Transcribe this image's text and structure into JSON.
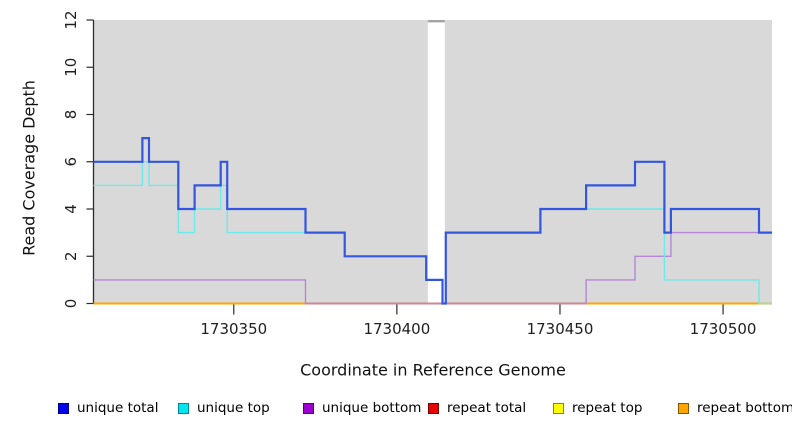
{
  "chart_data": {
    "type": "line",
    "subtype": "step-coverage",
    "title": "",
    "xlabel": "Coordinate in Reference Genome",
    "ylabel": "Read Coverage Depth",
    "xlim": [
      1730307,
      1730515
    ],
    "ylim": [
      0,
      12
    ],
    "x_ticks": [
      "1730350",
      "1730400",
      "1730450",
      "1730500"
    ],
    "x_tick_values": [
      1730350,
      1730400,
      1730450,
      1730500
    ],
    "y_ticks": [
      "0",
      "2",
      "4",
      "6",
      "8",
      "10",
      "12"
    ],
    "y_tick_values": [
      0,
      2,
      4,
      6,
      8,
      10,
      12
    ],
    "grid": "off",
    "legend_position": "bottom",
    "plot_background": "#D9D9D9",
    "masked_region": {
      "x_start": 1730409.5,
      "x_end": 1730414.7,
      "fill": "#FFFFFF",
      "cap_color": "#A3A3A3"
    },
    "overlap_tint": {
      "x_start": 1730372,
      "x_end": 1730458,
      "value": 0,
      "color": "#D4639B"
    },
    "series": [
      {
        "name": "unique total",
        "line_color": "#3356DF",
        "legend_fill": "#0000EE",
        "legend_edge": "#000088",
        "line_width": 2.2,
        "steps": [
          [
            1730307,
            6
          ],
          [
            1730322,
            7
          ],
          [
            1730324,
            6
          ],
          [
            1730333,
            4
          ],
          [
            1730338,
            5
          ],
          [
            1730346,
            6
          ],
          [
            1730348,
            4
          ],
          [
            1730372,
            3
          ],
          [
            1730384,
            2
          ],
          [
            1730409,
            1
          ],
          [
            1730414,
            0
          ],
          [
            1730415,
            3
          ],
          [
            1730444,
            4
          ],
          [
            1730458,
            5
          ],
          [
            1730473,
            6
          ],
          [
            1730482,
            3
          ],
          [
            1730484,
            4
          ],
          [
            1730511,
            3
          ]
        ]
      },
      {
        "name": "unique top",
        "line_color": "#6FE9E9",
        "legend_fill": "#00E5EE",
        "legend_edge": "#008899",
        "line_width": 1.4,
        "steps": [
          [
            1730307,
            5
          ],
          [
            1730322,
            6
          ],
          [
            1730324,
            5
          ],
          [
            1730333,
            3
          ],
          [
            1730338,
            4
          ],
          [
            1730346,
            5
          ],
          [
            1730348,
            3
          ],
          [
            1730384,
            2
          ],
          [
            1730409,
            1
          ],
          [
            1730414,
            0
          ],
          [
            1730415,
            3
          ],
          [
            1730444,
            4
          ],
          [
            1730482,
            1
          ],
          [
            1730511,
            0
          ]
        ]
      },
      {
        "name": "unique bottom",
        "line_color": "#B685D8",
        "legend_fill": "#9A00CE",
        "legend_edge": "#550077",
        "line_width": 1.4,
        "steps": [
          [
            1730307,
            1
          ],
          [
            1730372,
            0
          ],
          [
            1730458,
            1
          ],
          [
            1730473,
            2
          ],
          [
            1730484,
            3
          ]
        ]
      },
      {
        "name": "repeat total",
        "line_color": "#E60000",
        "legend_fill": "#E60000",
        "legend_edge": "#770000",
        "line_width": 1.4,
        "steps": [
          [
            1730307,
            0
          ]
        ]
      },
      {
        "name": "repeat top",
        "line_color": "#FFFF00",
        "legend_fill": "#FFFF00",
        "legend_edge": "#888800",
        "line_width": 1.4,
        "steps": [
          [
            1730307,
            0
          ]
        ]
      },
      {
        "name": "repeat bottom",
        "line_color": "#FFA500",
        "legend_fill": "#FFA500",
        "legend_edge": "#885500",
        "line_width": 2,
        "steps": [
          [
            1730307,
            0
          ]
        ]
      }
    ]
  }
}
